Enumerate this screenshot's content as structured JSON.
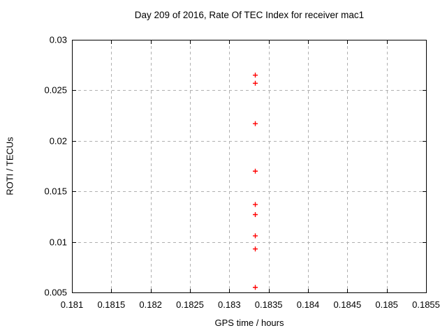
{
  "chart_data": {
    "type": "scatter",
    "title": "Day 209 of 2016, Rate Of TEC Index for receiver mac1",
    "xlabel": "GPS time / hours",
    "ylabel": "ROTI / TECUs",
    "xlim": [
      0.181,
      0.1855
    ],
    "ylim": [
      0.005,
      0.03
    ],
    "grid": "dashed",
    "grid_color": "#b0b0b0",
    "axis_color": "#000000",
    "background_color": "#ffffff",
    "legend": "none",
    "x_ticks": [
      {
        "value": 0.181,
        "label": "0.181"
      },
      {
        "value": 0.1815,
        "label": "0.1815"
      },
      {
        "value": 0.182,
        "label": "0.182"
      },
      {
        "value": 0.1825,
        "label": "0.1825"
      },
      {
        "value": 0.183,
        "label": "0.183"
      },
      {
        "value": 0.1835,
        "label": "0.1835"
      },
      {
        "value": 0.184,
        "label": "0.184"
      },
      {
        "value": 0.1845,
        "label": "0.1845"
      },
      {
        "value": 0.185,
        "label": "0.185"
      },
      {
        "value": 0.1855,
        "label": "0.1855"
      }
    ],
    "y_ticks": [
      {
        "value": 0.005,
        "label": "0.005"
      },
      {
        "value": 0.01,
        "label": "0.01"
      },
      {
        "value": 0.015,
        "label": "0.015"
      },
      {
        "value": 0.02,
        "label": "0.02"
      },
      {
        "value": 0.025,
        "label": "0.025"
      },
      {
        "value": 0.03,
        "label": "0.03"
      }
    ],
    "series": [
      {
        "name": "roti",
        "marker": "plus",
        "color": "#ff0000",
        "points": [
          [
            0.18333,
            0.0265
          ],
          [
            0.18333,
            0.0257
          ],
          [
            0.18333,
            0.0217
          ],
          [
            0.18333,
            0.017
          ],
          [
            0.18333,
            0.0137
          ],
          [
            0.18333,
            0.0127
          ],
          [
            0.18333,
            0.0106
          ],
          [
            0.18333,
            0.0093
          ],
          [
            0.18333,
            0.0055
          ]
        ]
      }
    ]
  }
}
